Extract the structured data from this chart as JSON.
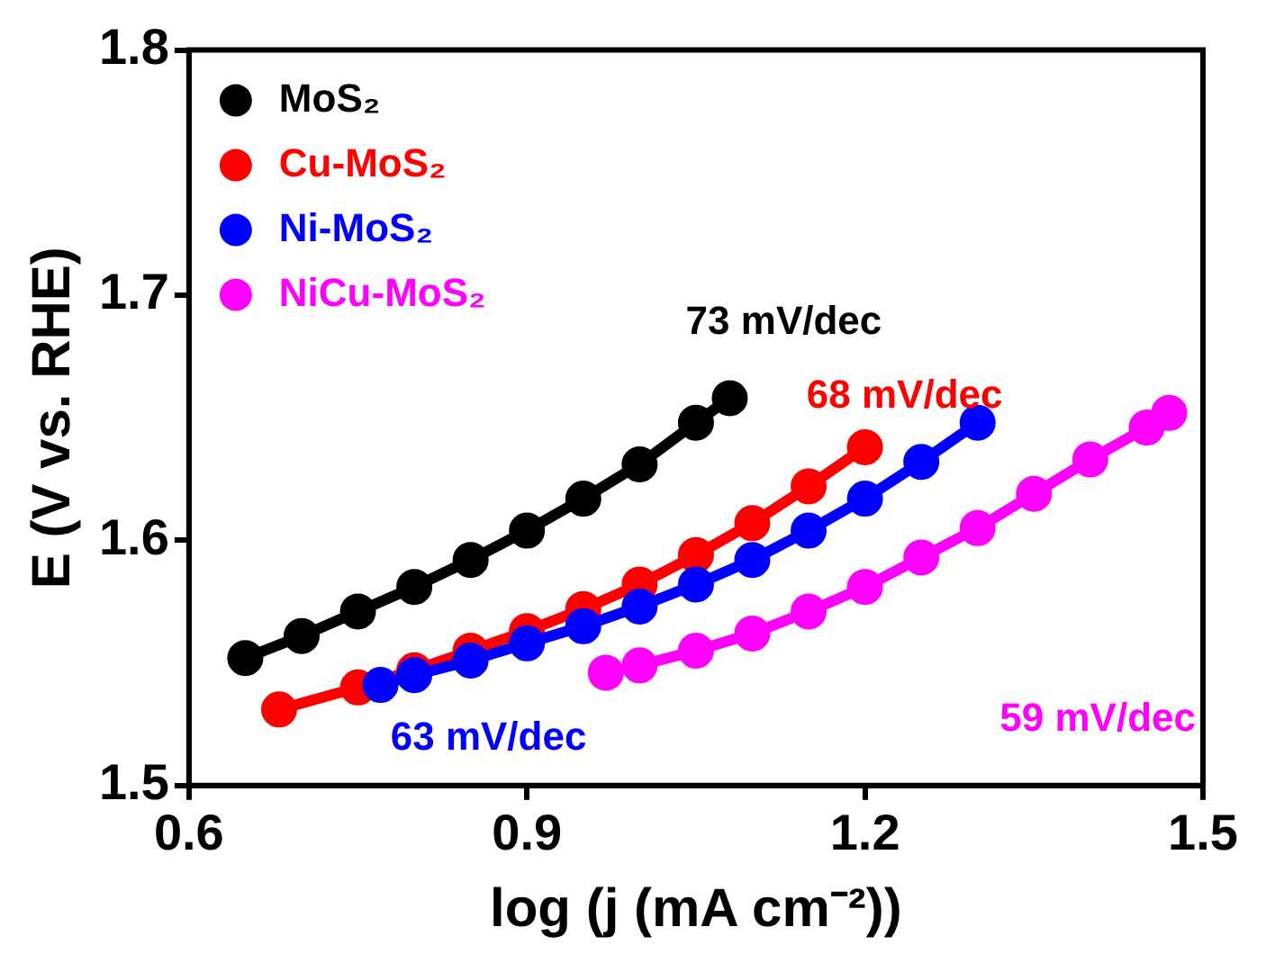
{
  "chart_data": {
    "type": "line",
    "xlabel": "log (j (mA cm⁻²))",
    "ylabel": "E (V vs. RHE)",
    "xlim": [
      0.6,
      1.5
    ],
    "xticks": [
      0.6,
      0.9,
      1.2,
      1.5
    ],
    "ylim": [
      1.5,
      1.8
    ],
    "yticks": [
      1.5,
      1.6,
      1.7,
      1.8
    ],
    "grid": false,
    "legend": "top left",
    "marker": "circle",
    "series": [
      {
        "name": "MoS₂",
        "color": "#000000",
        "x": [
          0.65,
          0.7,
          0.75,
          0.8,
          0.85,
          0.9,
          0.95,
          1.0,
          1.05,
          1.08
        ],
        "values": [
          1.552,
          1.561,
          1.571,
          1.581,
          1.592,
          1.604,
          1.617,
          1.631,
          1.648,
          1.658
        ]
      },
      {
        "name": "Cu-MoS₂",
        "color": "#ff0000",
        "x": [
          0.68,
          0.75,
          0.8,
          0.85,
          0.9,
          0.95,
          1.0,
          1.05,
          1.1,
          1.15,
          1.2
        ],
        "values": [
          1.531,
          1.54,
          1.547,
          1.555,
          1.563,
          1.572,
          1.582,
          1.594,
          1.607,
          1.622,
          1.638
        ]
      },
      {
        "name": "Ni-MoS₂",
        "color": "#0000ff",
        "x": [
          0.77,
          0.8,
          0.85,
          0.9,
          0.95,
          1.0,
          1.05,
          1.1,
          1.15,
          1.2,
          1.25,
          1.3
        ],
        "values": [
          1.541,
          1.545,
          1.551,
          1.558,
          1.565,
          1.573,
          1.582,
          1.592,
          1.604,
          1.617,
          1.632,
          1.648
        ]
      },
      {
        "name": "NiCu-MoS₂",
        "color": "#ff00ff",
        "x": [
          0.97,
          1.0,
          1.05,
          1.1,
          1.15,
          1.2,
          1.25,
          1.3,
          1.35,
          1.4,
          1.45,
          1.47
        ],
        "values": [
          1.546,
          1.549,
          1.555,
          1.562,
          1.571,
          1.581,
          1.593,
          1.605,
          1.619,
          1.633,
          1.646,
          1.652
        ]
      }
    ],
    "annotations": [
      "73 mV/dec",
      "68 mV/dec",
      "63 mV/dec",
      "59 mV/dec"
    ]
  }
}
